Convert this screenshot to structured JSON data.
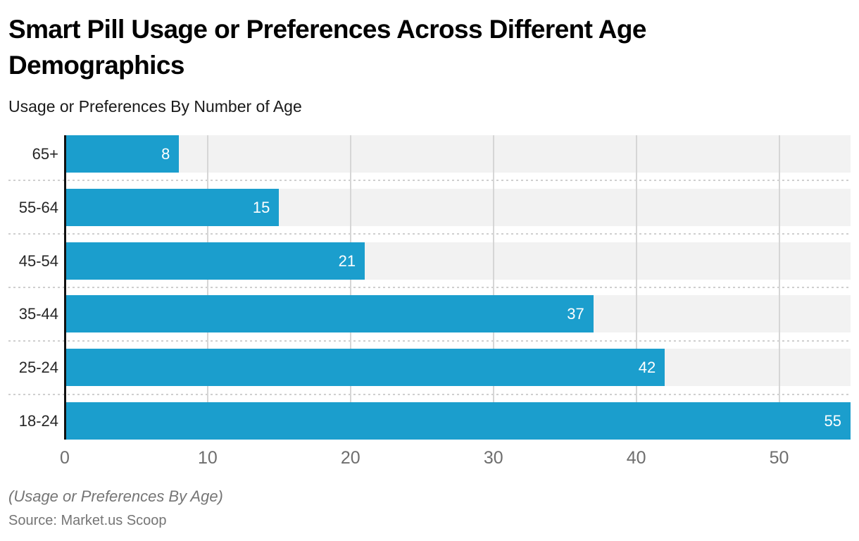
{
  "header": {
    "title": "Smart Pill Usage or Preferences Across Different Age Demographics",
    "subtitle": "Usage or Preferences By Number of Age"
  },
  "chart_data": {
    "type": "bar",
    "orientation": "horizontal",
    "title": "Smart Pill Usage or Preferences Across Different Age Demographics",
    "subtitle": "Usage or Preferences By Number of Age",
    "categories": [
      "65+",
      "55-64",
      "45-54",
      "35-44",
      "25-24",
      "18-24"
    ],
    "values": [
      8,
      15,
      21,
      37,
      42,
      55
    ],
    "value_labels": [
      "8",
      "15",
      "21",
      "37",
      "42",
      "55"
    ],
    "xlim": [
      0,
      55
    ],
    "x_ticks": [
      0,
      10,
      20,
      30,
      40,
      50
    ],
    "x_tick_labels": [
      "0",
      "10",
      "20",
      "30",
      "40",
      "50"
    ],
    "grid": "vertical",
    "legend": "none",
    "bar_color": "#1b9ecd",
    "track_color": "#f2f2f2",
    "gridline_color": "#d6d6d6",
    "axis_line_color": "#111111",
    "value_label_color": "#ffffff"
  },
  "footer": {
    "note": "(Usage or Preferences By Age)",
    "source": "Source: Market.us Scoop"
  }
}
